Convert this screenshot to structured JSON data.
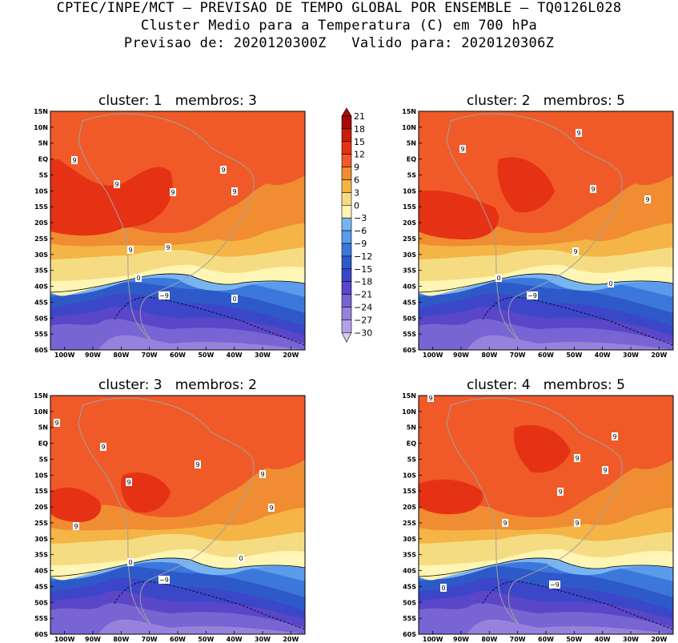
{
  "header": {
    "line1": "CPTEC/INPE/MCT – PREVISAO DE TEMPO GLOBAL POR ENSEMBLE – TQ0126L028",
    "line2": "Cluster Medio para a Temperatura (C) em 700 hPa",
    "line3": "Previsao de: 2020120300Z   Valido para: 2020120306Z"
  },
  "colors": {
    "c21": "#a50a0a",
    "c18": "#c81e0a",
    "c15": "#e63214",
    "c12": "#f05a28",
    "c9": "#f08c32",
    "c6": "#f5b446",
    "c3": "#f5dc82",
    "c0": "#fff5b4",
    "cm3": "#78b4f0",
    "cm6": "#5a9ceb",
    "cm9": "#3c78dc",
    "cm12": "#2d5ac8",
    "cm15": "#3c46c8",
    "cm18": "#5a46c8",
    "cm21": "#7864d2",
    "cm24": "#9682dc",
    "cm27": "#b4a0e6",
    "cm30": "#d7cdf0",
    "coast": "#a0a0a0"
  },
  "colorbar": {
    "labels": [
      "21",
      "18",
      "15",
      "12",
      "9",
      "6",
      "3",
      "0",
      "−3",
      "−6",
      "−9",
      "−12",
      "−15",
      "−18",
      "−21",
      "−24",
      "−27",
      "−30"
    ]
  },
  "axes": {
    "lat_labels": [
      "15N",
      "10N",
      "5N",
      "EQ",
      "5S",
      "10S",
      "15S",
      "20S",
      "25S",
      "30S",
      "35S",
      "40S",
      "45S",
      "50S",
      "55S",
      "60S"
    ],
    "lon_labels": [
      "100W",
      "90W",
      "80W",
      "70W",
      "60W",
      "50W",
      "40W",
      "30W",
      "20W"
    ]
  },
  "panels": [
    {
      "cluster_label": "cluster:",
      "cluster": "1",
      "members_label": "membros:",
      "members": "3",
      "contour_labels": [
        "9",
        "9",
        "9",
        "9",
        "9",
        "9",
        "9",
        "0",
        "0",
        "−9"
      ]
    },
    {
      "cluster_label": "cluster:",
      "cluster": "2",
      "members_label": "membros:",
      "members": "5",
      "contour_labels": [
        "9",
        "9",
        "9",
        "9",
        "9",
        "0",
        "0",
        "−9"
      ]
    },
    {
      "cluster_label": "cluster:",
      "cluster": "3",
      "members_label": "membros:",
      "members": "2",
      "contour_labels": [
        "9",
        "9",
        "9",
        "9",
        "9",
        "9",
        "9",
        "0",
        "0",
        "−9"
      ]
    },
    {
      "cluster_label": "cluster:",
      "cluster": "4",
      "members_label": "membros:",
      "members": "5",
      "contour_labels": [
        "9",
        "9",
        "9",
        "9",
        "9",
        "9",
        "9",
        "0",
        "−9"
      ]
    }
  ]
}
